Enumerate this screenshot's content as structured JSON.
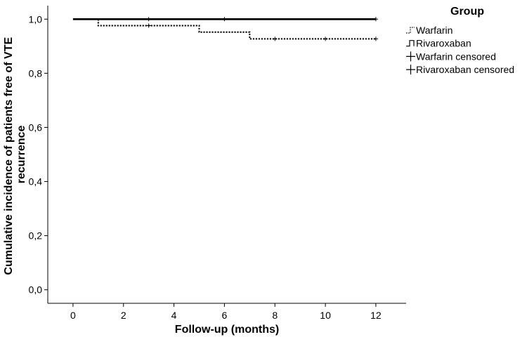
{
  "chart_data": {
    "type": "line",
    "subtype": "kaplan-meier step",
    "xlabel": "Follow-up (months)",
    "ylabel_lines": [
      "Cumulative incidence of patients free of VTE",
      "recurrence"
    ],
    "xlim": [
      -1,
      13.2
    ],
    "ylim": [
      -0.05,
      1.05
    ],
    "xticks": [
      0,
      2,
      4,
      6,
      8,
      10,
      12
    ],
    "xtick_labels": [
      "0",
      "2",
      "4",
      "6",
      "8",
      "10",
      "12"
    ],
    "yticks": [
      0.0,
      0.2,
      0.4,
      0.6,
      0.8,
      1.0
    ],
    "ytick_labels": [
      "0,0",
      "0,2",
      "0,4",
      "0,6",
      "0,8",
      "1,0"
    ],
    "grid": false,
    "legend": {
      "title": "Group",
      "placement": "right",
      "entries": [
        "Warfarin",
        "Rivaroxaban",
        "Warfarin censored",
        "Rivaroxaban censored"
      ]
    },
    "series": [
      {
        "name": "Warfarin",
        "style": "dotted",
        "color": "#000000",
        "steps": [
          [
            0,
            1.0
          ],
          [
            1,
            0.976
          ],
          [
            5,
            0.952
          ],
          [
            7,
            0.927
          ],
          [
            12,
            0.927
          ]
        ],
        "censored": [
          [
            3,
            0.976
          ],
          [
            8,
            0.927
          ],
          [
            10,
            0.927
          ],
          [
            12,
            0.927
          ]
        ]
      },
      {
        "name": "Rivaroxaban",
        "style": "solid",
        "color": "#000000",
        "steps": [
          [
            0,
            1.0
          ],
          [
            12,
            1.0
          ]
        ],
        "censored": [
          [
            3,
            1.0
          ],
          [
            6,
            1.0
          ],
          [
            12,
            1.0
          ]
        ]
      }
    ]
  }
}
